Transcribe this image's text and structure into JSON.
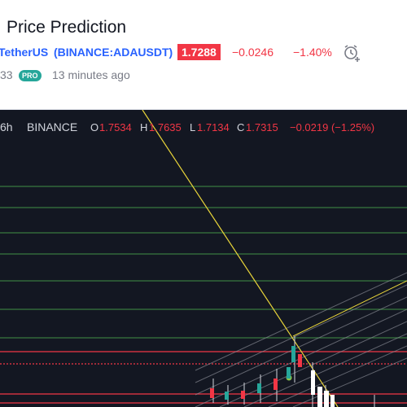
{
  "header": {
    "title": "Price Prediction",
    "symbol": "TetherUS",
    "ticker": "(BINANCE:ADAUSDT)",
    "price": "1.7288",
    "change": "−0.0246",
    "change_percent": "−1.40%",
    "author": "33",
    "badge": "PRO",
    "time": "13 minutes ago"
  },
  "chart_header": {
    "interval": "6h",
    "exchange": "BINANCE",
    "open_label": "O",
    "open": "1.7534",
    "high_label": "H",
    "high": "1.7635",
    "low_label": "L",
    "low": "1.7134",
    "close_label": "C",
    "close": "1.7315",
    "change": "−0.0219 (−1.25%)"
  }
}
